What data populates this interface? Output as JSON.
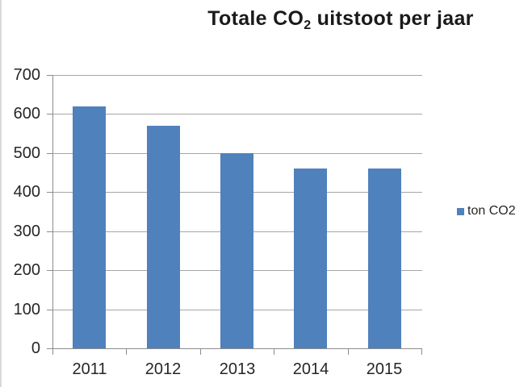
{
  "title": {
    "prefix": "Totale CO",
    "subscript": "2",
    "suffix": " uitstoot per jaar"
  },
  "legend": {
    "label": "ton CO2",
    "swatch_color": "#4F81BD"
  },
  "chart_data": {
    "type": "bar",
    "title": "Totale CO2 uitstoot per jaar",
    "categories": [
      "2011",
      "2012",
      "2013",
      "2014",
      "2015"
    ],
    "series": [
      {
        "name": "ton CO2",
        "values": [
          620,
          570,
          500,
          460,
          460
        ]
      }
    ],
    "xlabel": "",
    "ylabel": "",
    "ylim": [
      0,
      700
    ],
    "yticks": [
      0,
      100,
      200,
      300,
      400,
      500,
      600,
      700
    ],
    "grid": true,
    "legend_position": "right",
    "bar_color": "#4F81BD",
    "gridline_color": "#a6a6a6",
    "axis_color": "#8c8c8c",
    "text_color": "#262626"
  }
}
